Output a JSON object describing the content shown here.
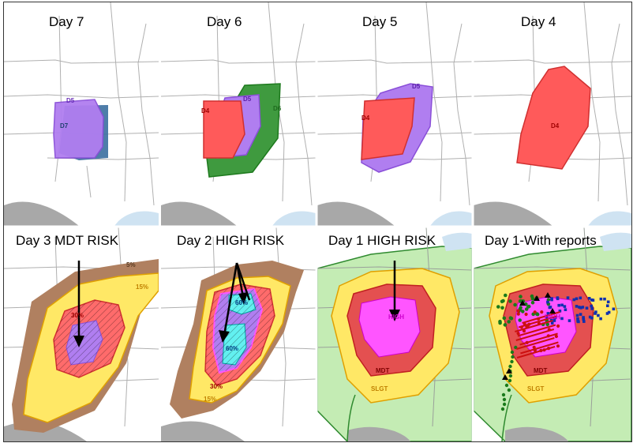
{
  "panels": [
    {
      "title": "Day 7",
      "labels": [
        "D5",
        "D7"
      ]
    },
    {
      "title": "Day 6",
      "labels": [
        "D4",
        "D5",
        "D6"
      ]
    },
    {
      "title": "Day 5",
      "labels": [
        "D5",
        "D4"
      ]
    },
    {
      "title": "Day 4",
      "labels": [
        "D4"
      ]
    },
    {
      "title": "Day 3 MDT RISK",
      "labels": [
        "5%",
        "15%",
        "30%"
      ]
    },
    {
      "title": "Day 2 HIGH RISK",
      "labels": [
        "60%",
        "60%",
        "30%",
        "15%"
      ]
    },
    {
      "title": "Day 1 HIGH RISK",
      "labels": [
        "HIGH",
        "MDT",
        "SLGT"
      ]
    },
    {
      "title": "Day 1-With reports",
      "labels": [
        "HIGH",
        "MDT",
        "SLGT"
      ]
    }
  ],
  "colors": {
    "background": "#ffffff",
    "border_lines": "#b0b0b0",
    "gulf_terrain": "#a8a8a8",
    "lakes": "#cfe3f2",
    "d7_purple": "#b07ef0",
    "d5_purple": "#b07ef0",
    "d4_red": "#ff5a5a",
    "d6_green": "#3f9a3f",
    "d7_blue": "#3b6fa0",
    "five_pct_brown": "#b08060",
    "fifteen_pct_yellow": "#ffe866",
    "thirty_pct_red": "#ff6b6b",
    "high_magenta": "#ff55ff",
    "sixty_pct_cyan": "#62f0f0",
    "slgt_green": "#c4ecb4",
    "mdt_red": "#e45050",
    "report_green": "#1a7a1a",
    "report_blue": "#1030b0",
    "report_red": "#cc1010",
    "report_black": "#000000"
  }
}
